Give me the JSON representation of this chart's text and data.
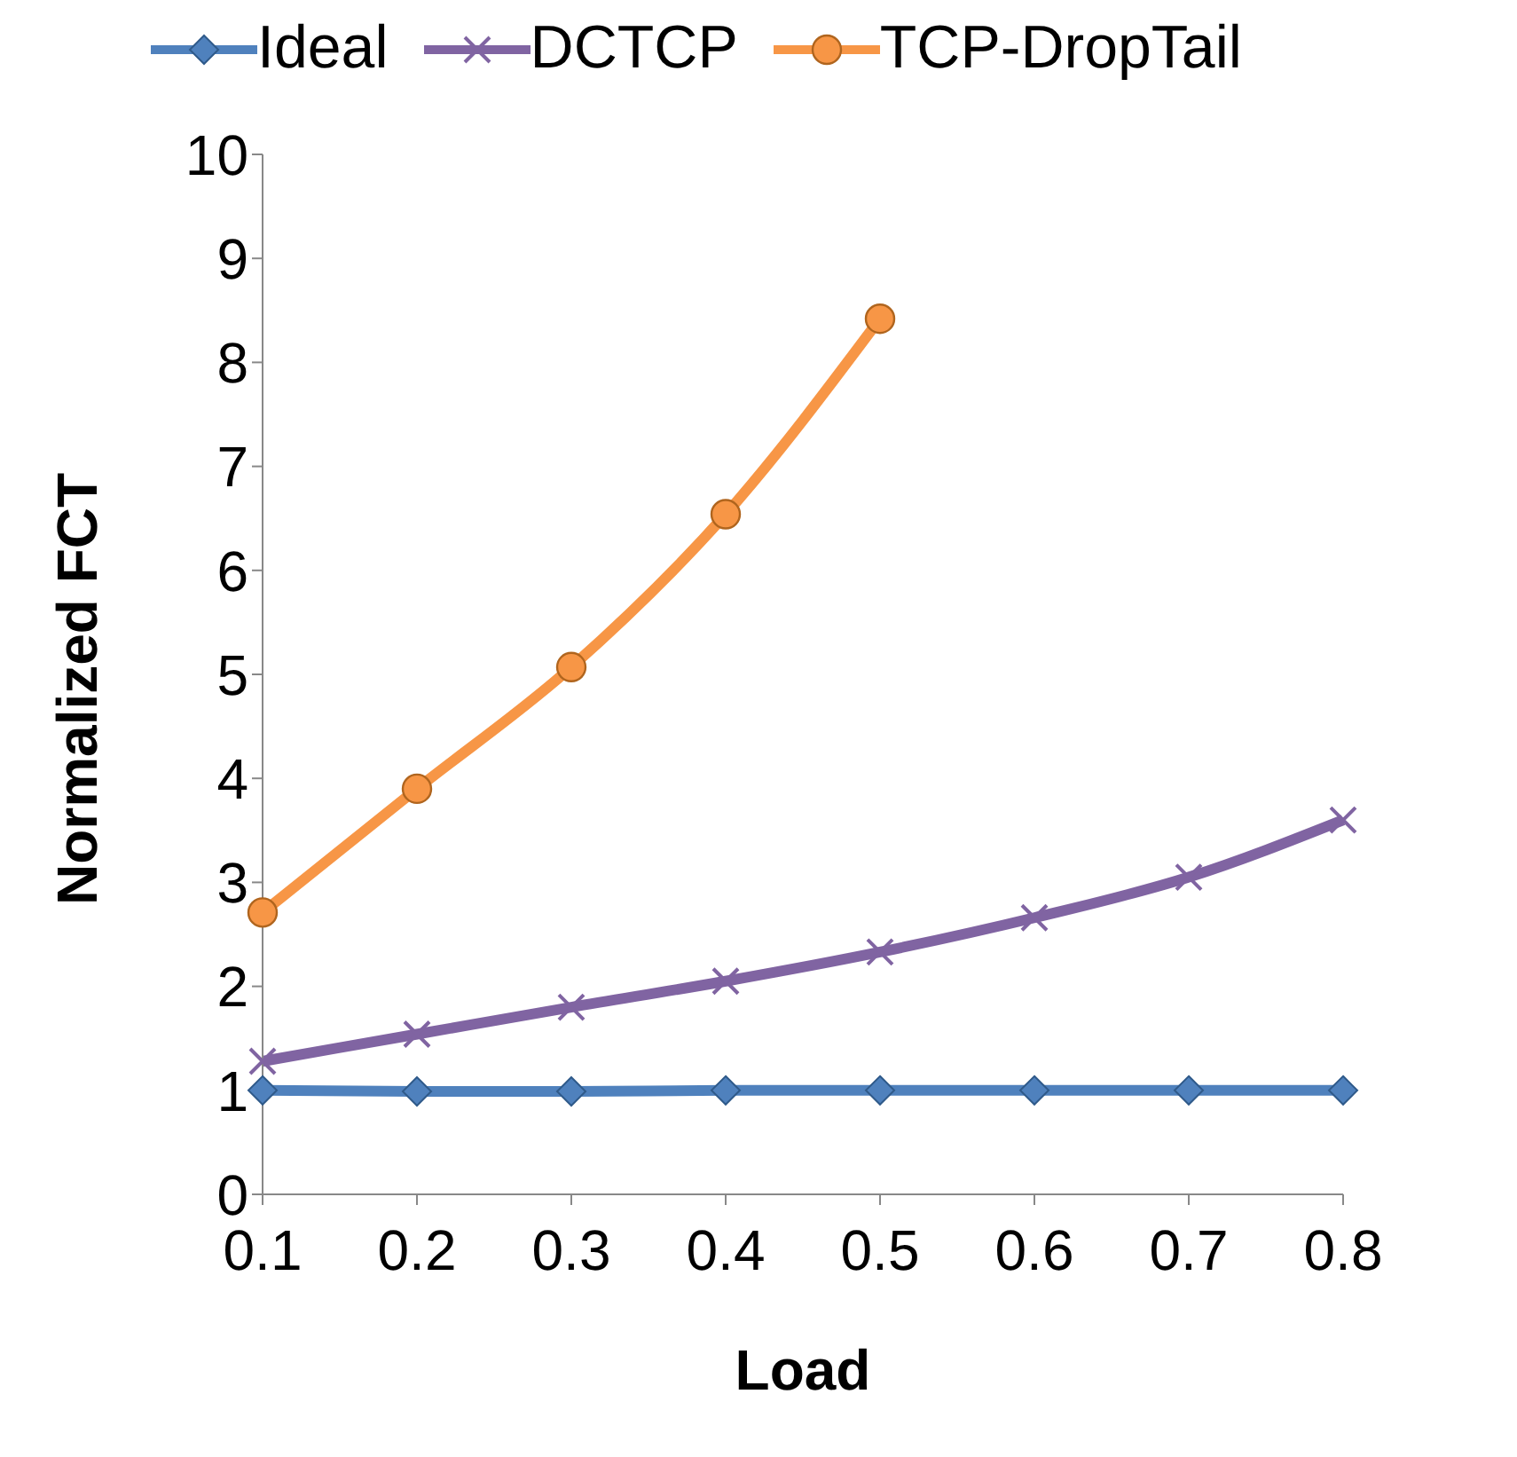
{
  "chart_data": {
    "type": "line",
    "xlabel": "Load",
    "ylabel": "Normalized FCT",
    "categories": [
      "0.1",
      "0.2",
      "0.3",
      "0.4",
      "0.5",
      "0.6",
      "0.7",
      "0.8"
    ],
    "series": [
      {
        "name": "Ideal",
        "color": "#4f81bd",
        "marker": "diamond",
        "values": [
          1.0,
          0.99,
          0.99,
          1.0,
          1.0,
          1.0,
          1.0,
          1.0
        ]
      },
      {
        "name": "DCTCP",
        "color": "#8064a2",
        "marker": "cross",
        "values": [
          1.28,
          1.54,
          1.8,
          2.05,
          2.33,
          2.66,
          3.05,
          3.6
        ]
      },
      {
        "name": "TCP-DropTail",
        "color": "#f79646",
        "marker": "circle",
        "values": [
          2.71,
          3.9,
          5.07,
          6.54,
          8.42,
          null,
          null,
          null
        ]
      }
    ],
    "ylim": [
      0,
      10
    ],
    "yticks": [
      0,
      1,
      2,
      3,
      4,
      5,
      6,
      7,
      8,
      9,
      10
    ],
    "grid": false,
    "legend": "top",
    "line_style": "solid"
  }
}
